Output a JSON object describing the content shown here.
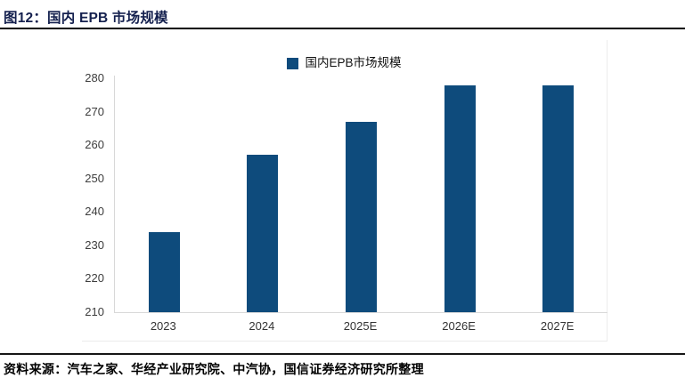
{
  "header": {
    "title": "图12：国内 EPB 市场规模"
  },
  "legend": {
    "label": "国内EPB市场规模"
  },
  "footer": {
    "source": "资料来源：汽车之家、华经产业研究院、中汽协，国信证券经济研究所整理"
  },
  "colors": {
    "bar": "#0E4B7C",
    "title": "#14204E",
    "axis_line": "#D8D8D8",
    "rule": "#000000"
  },
  "chart_data": {
    "type": "bar",
    "title": "图12：国内 EPB 市场规模",
    "legend_entries": [
      "国内EPB市场规模"
    ],
    "legend_position": "top-center",
    "categories": [
      "2023",
      "2024",
      "2025E",
      "2026E",
      "2027E"
    ],
    "values": [
      234,
      257,
      267,
      278,
      278
    ],
    "xlabel": "",
    "ylabel": "",
    "ylim": [
      210,
      280
    ],
    "yticks": [
      210,
      220,
      230,
      240,
      250,
      260,
      270,
      280
    ],
    "grid": false,
    "bar_color": "#0E4B7C"
  }
}
